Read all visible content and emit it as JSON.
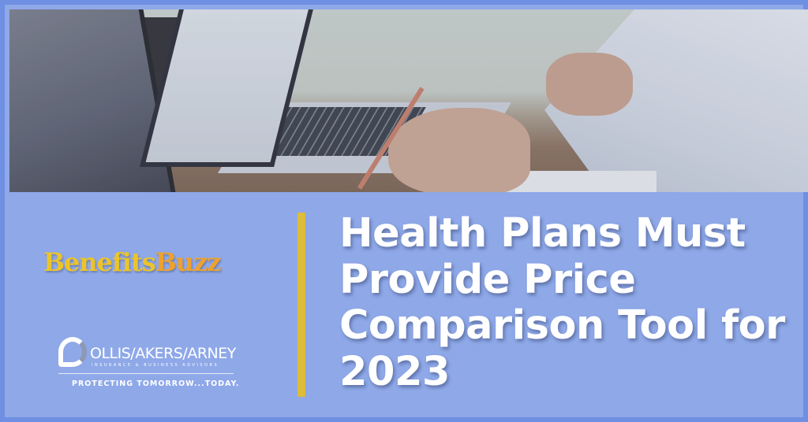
{
  "brand": {
    "benefits_part1": "Benefits",
    "benefits_part2": "Buzz"
  },
  "company": {
    "name": "OLLIS/AKERS/ARNEY",
    "subtitle": "INSURANCE & BUSINESS ADVISORS",
    "tagline": "PROTECTING TOMORROW...TODAY."
  },
  "headline": "Health Plans Must Provide Price Comparison Tool for 2023",
  "colors": {
    "background": "#8ea8e8",
    "border": "#6f8fe2",
    "divider": "#dcbc3a",
    "benefits": "#ecc42a",
    "buzz": "#eea12c"
  }
}
